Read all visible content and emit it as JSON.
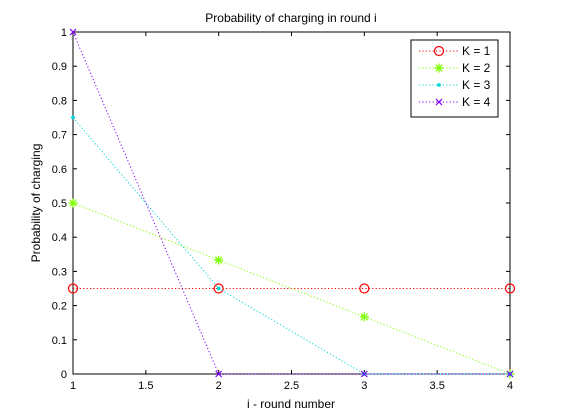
{
  "chart_data": {
    "type": "line",
    "title": "Probability of charging in round i",
    "xlabel": "i - round number",
    "ylabel": "Probability of charging",
    "xlim": [
      1,
      4
    ],
    "ylim": [
      0,
      1
    ],
    "x_ticks": [
      1,
      1.5,
      2,
      2.5,
      3,
      3.5,
      4
    ],
    "x_tick_labels": [
      "1",
      "1.5",
      "2",
      "2.5",
      "3",
      "3.5",
      "4"
    ],
    "y_ticks": [
      0,
      0.1,
      0.2,
      0.3,
      0.4,
      0.5,
      0.6,
      0.7,
      0.8,
      0.9,
      1
    ],
    "y_tick_labels": [
      "0",
      "0.1",
      "0.2",
      "0.3",
      "0.4",
      "0.5",
      "0.6",
      "0.7",
      "0.8",
      "0.9",
      "1"
    ],
    "grid": false,
    "legend_position": "top-right",
    "series": [
      {
        "name": "K = 1",
        "x": [
          1,
          2,
          3,
          4
        ],
        "y": [
          0.25,
          0.25,
          0.25,
          0.25
        ],
        "color": "#ff0000",
        "marker": "circle",
        "line_style": "dotted"
      },
      {
        "name": "K = 2",
        "x": [
          1,
          2,
          3,
          4
        ],
        "y": [
          0.5,
          0.333,
          0.167,
          0
        ],
        "color": "#80ff00",
        "marker": "asterisk",
        "line_style": "dotted"
      },
      {
        "name": "K = 3",
        "x": [
          1,
          2,
          3,
          4
        ],
        "y": [
          0.75,
          0.25,
          0,
          0
        ],
        "color": "#00d8d8",
        "marker": "point",
        "line_style": "dotted"
      },
      {
        "name": "K = 4",
        "x": [
          1,
          2,
          3,
          4
        ],
        "y": [
          1,
          0,
          0,
          0
        ],
        "color": "#8000ff",
        "marker": "x",
        "line_style": "dotted"
      }
    ]
  }
}
